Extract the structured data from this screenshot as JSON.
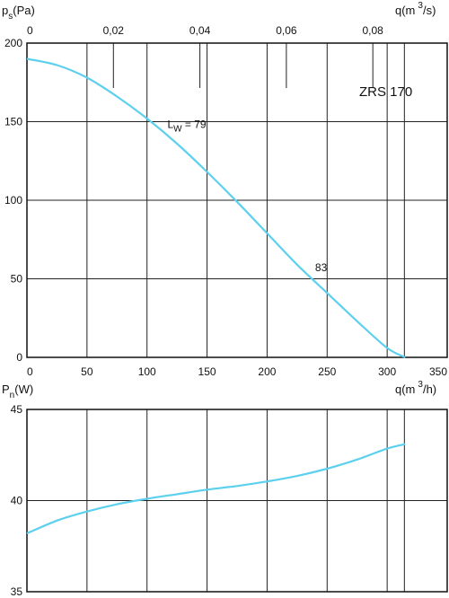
{
  "chart_data": [
    {
      "type": "line",
      "model_label": "ZRS 170",
      "ylabel": {
        "main": "p",
        "sub": "s",
        "unit": "(Pa)"
      },
      "xlabel_bottom": {
        "main": "q(m",
        "sup": "3",
        "unit": "/h)"
      },
      "xlabel_top": {
        "main": "q(m",
        "sup": "3",
        "unit": "/s)"
      },
      "xlim": [
        0,
        350
      ],
      "ylim": [
        0,
        200
      ],
      "x_ticks": [
        0,
        50,
        100,
        150,
        200,
        250,
        300,
        350
      ],
      "y_ticks": [
        0,
        50,
        100,
        150,
        200
      ],
      "top_xlim": [
        0,
        0.0972
      ],
      "top_ticks": [
        "0",
        "0,02",
        "0,04",
        "0,06",
        "0,08"
      ],
      "top_tick_values": [
        0,
        0.02,
        0.04,
        0.06,
        0.08
      ],
      "series": [
        {
          "color": "#5dd0ee",
          "x": [
            0,
            25,
            50,
            75,
            100,
            125,
            150,
            175,
            200,
            225,
            250,
            275,
            300,
            315
          ],
          "y": [
            190,
            186,
            178,
            166,
            152,
            136,
            118,
            99,
            79,
            59,
            41,
            23,
            6,
            0
          ]
        }
      ],
      "annotations": [
        {
          "text_main": "L",
          "text_sub": "W",
          "text_rest": " = 79",
          "x": 117,
          "y": 146
        },
        {
          "text_main": "83",
          "x": 240,
          "y": 55
        }
      ]
    },
    {
      "type": "line",
      "ylabel": {
        "main": "P",
        "sub": "n",
        "unit": "(W)"
      },
      "xlim": [
        0,
        350
      ],
      "ylim": [
        35,
        45
      ],
      "x_ticks": [
        0,
        50,
        100,
        150,
        200,
        250,
        300,
        350
      ],
      "y_ticks": [
        35,
        40,
        45
      ],
      "series": [
        {
          "color": "#5dd0ee",
          "x": [
            0,
            25,
            50,
            75,
            100,
            125,
            150,
            175,
            200,
            225,
            250,
            275,
            300,
            315
          ],
          "y": [
            38.2,
            38.9,
            39.4,
            39.8,
            40.1,
            40.35,
            40.6,
            40.8,
            41.05,
            41.35,
            41.75,
            42.25,
            42.85,
            43.1
          ]
        }
      ]
    }
  ]
}
